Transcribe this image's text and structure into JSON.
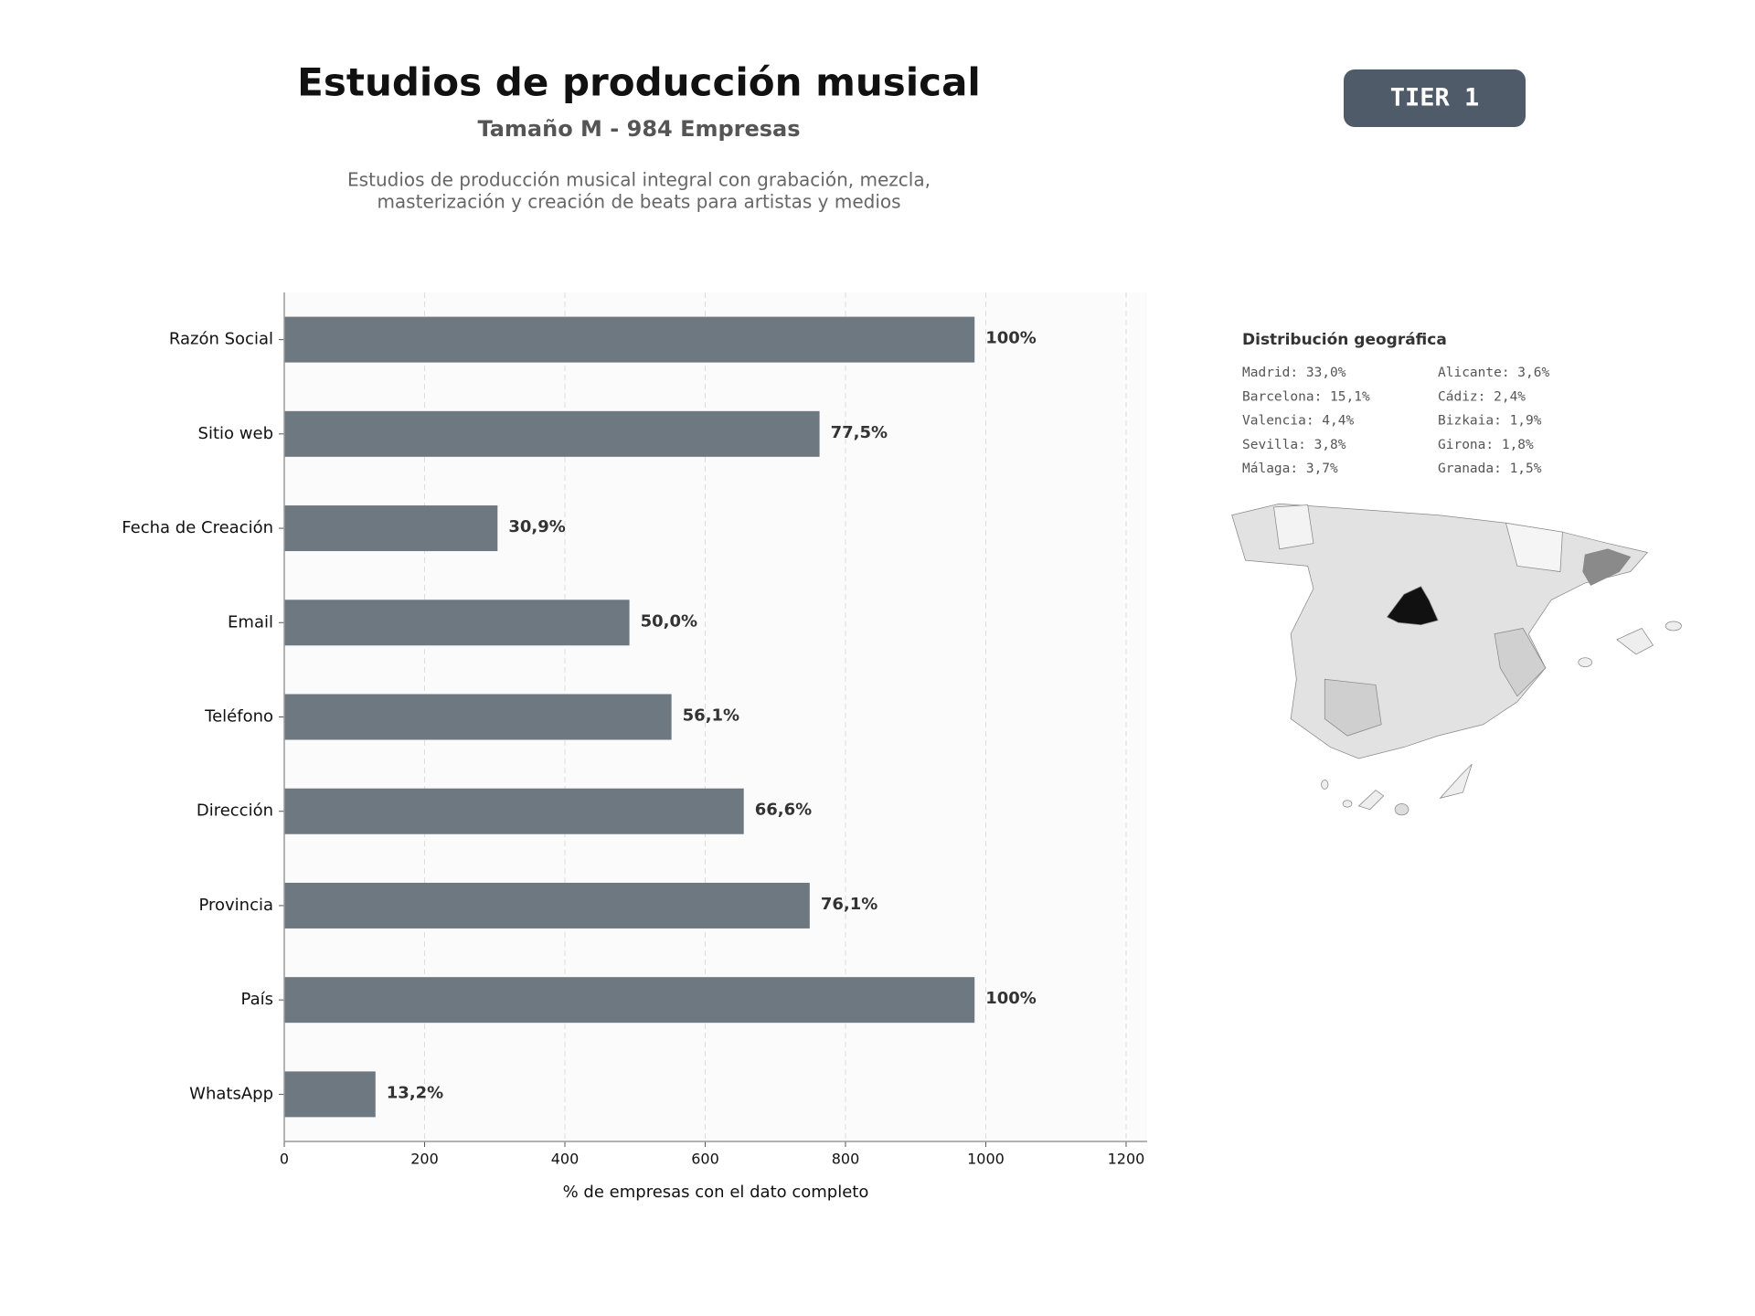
{
  "chart_data": {
    "type": "bar",
    "orientation": "horizontal",
    "title": "Estudios de producción musical",
    "subtitle": "Tamaño M - 984 Empresas",
    "description": [
      "Estudios de producción musical integral con grabación, mezcla,",
      "masterización y creación de beats para artistas y medios"
    ],
    "badge": "TIER 1",
    "categories": [
      "Razón Social",
      "Sitio web",
      "Fecha de Creación",
      "Email",
      "Teléfono",
      "Dirección",
      "Provincia",
      "País",
      "WhatsApp"
    ],
    "values": [
      984,
      763,
      304,
      492,
      552,
      655,
      749,
      984,
      130
    ],
    "value_labels": [
      "100%",
      "77,5%",
      "30,9%",
      "50,0%",
      "56,1%",
      "66,6%",
      "76,1%",
      "100%",
      "13,2%"
    ],
    "color": "#6e7881",
    "xlabel": "% de empresas con el dato completo",
    "xlim": [
      0,
      1230
    ],
    "xticks": [
      0,
      200,
      400,
      600,
      800,
      1000,
      1200
    ],
    "grid": true
  },
  "map": {
    "title": "Distribución geográfica",
    "items": [
      "Madrid: 33,0%",
      "Barcelona: 15,1%",
      "Valencia: 4,4%",
      "Sevilla: 3,8%",
      "Málaga: 3,7%",
      "Alicante: 3,6%",
      "Cádiz: 2,4%",
      "Bizkaia: 1,9%",
      "Girona: 1,8%",
      "Granada: 1,5%"
    ]
  }
}
